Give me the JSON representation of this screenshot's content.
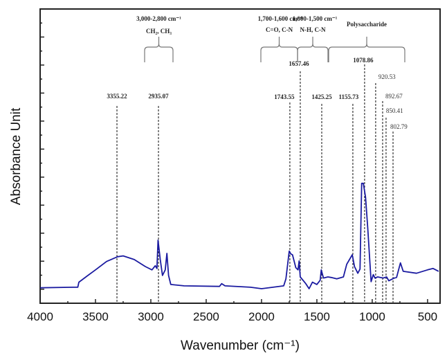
{
  "chart_data": {
    "type": "line",
    "title": "",
    "xlabel": "Wavenumber (cm⁻¹)",
    "ylabel": "Absorbance Unit",
    "xlim": [
      4000,
      387
    ],
    "ylim": [
      -0.5,
      10
    ],
    "x_ticks": [
      4000,
      3500,
      3000,
      2500,
      2000,
      1500,
      1000,
      500
    ],
    "x_tick_labels": [
      "4000",
      "3500",
      "3000",
      "2500",
      "2000",
      "1500",
      "1000",
      "500"
    ],
    "y_tick_labels_shown": false,
    "grid": false,
    "line_color": "#1a1aa0",
    "series": [
      {
        "name": "spectrum",
        "x": [
          4000,
          3700,
          3660,
          3650,
          3600,
          3500,
          3400,
          3300,
          3250,
          3150,
          3050,
          2990,
          2960,
          2945,
          2935,
          2915,
          2895,
          2870,
          2855,
          2840,
          2820,
          2700,
          2380,
          2360,
          2330,
          2100,
          2000,
          1800,
          1780,
          1750,
          1735,
          1720,
          1690,
          1670,
          1660,
          1650,
          1600,
          1570,
          1540,
          1500,
          1470,
          1460,
          1440,
          1400,
          1370,
          1320,
          1260,
          1230,
          1180,
          1160,
          1130,
          1110,
          1095,
          1080,
          1060,
          1040,
          1010,
          990,
          975,
          950,
          900,
          870,
          850,
          800,
          780,
          745,
          720,
          600,
          500,
          450,
          400
        ],
        "y": [
          0.05,
          0.07,
          0.07,
          0.25,
          0.4,
          0.69,
          0.99,
          1.16,
          1.19,
          1.06,
          0.81,
          0.69,
          0.84,
          0.74,
          1.75,
          1.06,
          0.49,
          0.69,
          1.28,
          0.49,
          0.17,
          0.12,
          0.1,
          0.2,
          0.12,
          0.07,
          0.02,
          0.12,
          0.37,
          1.36,
          1.26,
          1.23,
          0.77,
          0.69,
          1.01,
          0.44,
          0.2,
          0.02,
          0.25,
          0.17,
          0.32,
          0.69,
          0.4,
          0.44,
          0.42,
          0.37,
          0.44,
          0.89,
          1.23,
          0.81,
          0.57,
          0.72,
          3.78,
          3.78,
          3.28,
          2.17,
          0.27,
          0.52,
          0.4,
          0.44,
          0.4,
          0.44,
          0.3,
          0.4,
          0.42,
          0.94,
          0.64,
          0.57,
          0.69,
          0.74,
          0.64
        ]
      }
    ],
    "peak_markers": [
      {
        "label": "3355.22",
        "x": 3306
      },
      {
        "label": "2935.07",
        "x": 2931
      },
      {
        "label": "1743.55",
        "x": 1744
      },
      {
        "label": "1657.46",
        "x": 1650
      },
      {
        "label": "1425.25",
        "x": 1456
      },
      {
        "label": "1155.73",
        "x": 1175
      },
      {
        "label": "1078.86",
        "x": 1069
      },
      {
        "label": "920.53",
        "x": 969
      },
      {
        "label": "892.67",
        "x": 906
      },
      {
        "label": "850.41",
        "x": 875
      },
      {
        "label": "802.79",
        "x": 812
      }
    ],
    "region_annotations": [
      {
        "range": "3,000-2,800 cm⁻¹",
        "group": "CH₂, CH₃",
        "from": 3000,
        "to": 2800
      },
      {
        "range": "1,700-1,600 cm⁻¹",
        "group": "C=O, C-N",
        "from": 1700,
        "to": 1600
      },
      {
        "range": "1,600-1,500 cm⁻¹",
        "group": "N-H, C-N",
        "from": 1600,
        "to": 1500
      },
      {
        "range": "",
        "group": "Polysaccharide",
        "from": 1500,
        "to": 720
      }
    ]
  }
}
